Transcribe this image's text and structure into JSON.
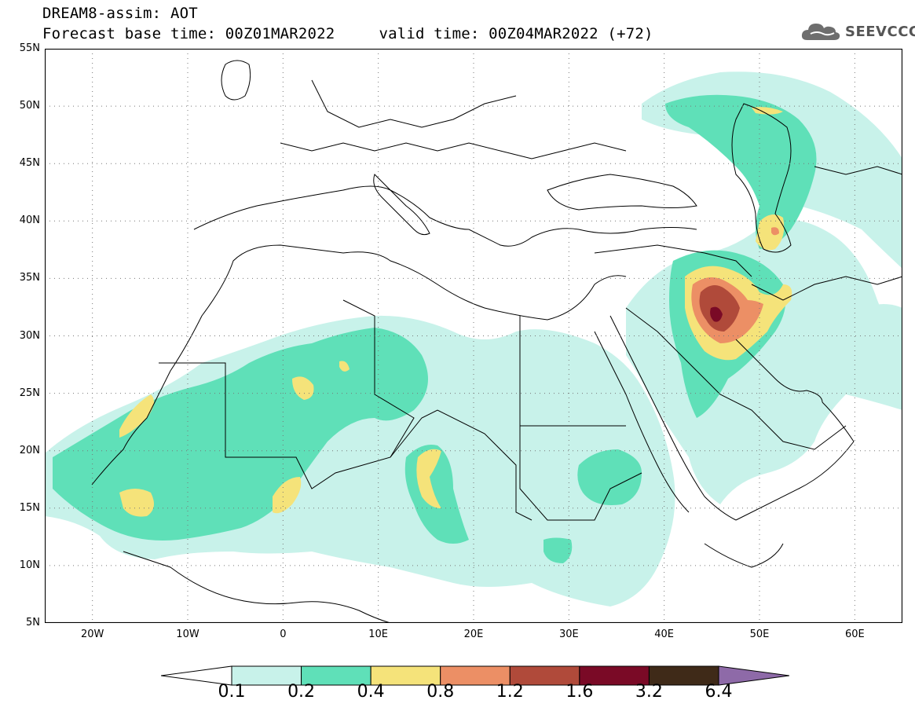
{
  "title": {
    "line1": "DREAM8-assim: AOT",
    "base_time": "Forecast base time: 00Z01MAR2022",
    "valid_time": "valid time: 00Z04MAR2022 (+72)"
  },
  "logo": {
    "text": "SEEVCCC",
    "icon": "cloud-icon"
  },
  "map": {
    "lat_labels": [
      "55N",
      "50N",
      "45N",
      "40N",
      "35N",
      "30N",
      "25N",
      "20N",
      "15N",
      "10N",
      "5N"
    ],
    "lon_labels": [
      "20W",
      "10W",
      "0",
      "10E",
      "20E",
      "30E",
      "40E",
      "50E",
      "60E"
    ],
    "extent": {
      "lon_min": -25,
      "lon_max": 65,
      "lat_min": 5,
      "lat_max": 55
    }
  },
  "legend": {
    "labels": [
      "0.1",
      "0.2",
      "0.4",
      "0.8",
      "1.2",
      "1.6",
      "3.2",
      "6.4"
    ],
    "colors": [
      "#c8f2ea",
      "#5fe0b8",
      "#f5e37a",
      "#ec8f65",
      "#b04a3a",
      "#7a0a26",
      "#3f2a18"
    ],
    "low_color": "#ffffff",
    "high_color": "#8e6aa8"
  },
  "colors": {
    "c01": "#c8f2ea",
    "c02": "#5fe0b8",
    "c04": "#f5e37a",
    "c08": "#ec8f65",
    "c12": "#b04a3a",
    "c16": "#7a0a26"
  }
}
